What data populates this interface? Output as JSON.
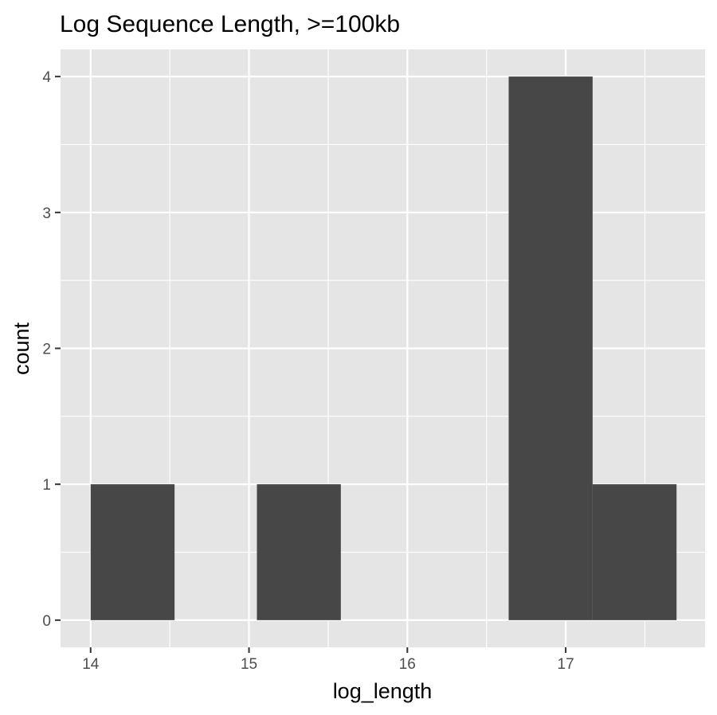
{
  "chart_data": {
    "type": "bar",
    "title": "Log Sequence Length, >=100kb",
    "xlabel": "log_length",
    "ylabel": "count",
    "x_ticks": [
      14,
      15,
      16,
      17
    ],
    "y_ticks": [
      0,
      1,
      2,
      3,
      4
    ],
    "xlim": [
      13.81,
      17.88
    ],
    "ylim": [
      -0.2,
      4.2
    ],
    "bins": [
      {
        "x0": 14.0,
        "x1": 14.53,
        "count": 1
      },
      {
        "x0": 14.53,
        "x1": 15.05,
        "count": 0
      },
      {
        "x0": 15.05,
        "x1": 15.58,
        "count": 1
      },
      {
        "x0": 15.58,
        "x1": 16.11,
        "count": 0
      },
      {
        "x0": 16.11,
        "x1": 16.64,
        "count": 0
      },
      {
        "x0": 16.64,
        "x1": 17.17,
        "count": 4
      },
      {
        "x0": 17.17,
        "x1": 17.7,
        "count": 1
      }
    ],
    "grid": true,
    "legend": "none",
    "colors": {
      "panel_background": "#e5e5e5",
      "grid": "#ffffff",
      "bar_fill": "#474747",
      "tick_text": "#4d4d4d"
    }
  }
}
